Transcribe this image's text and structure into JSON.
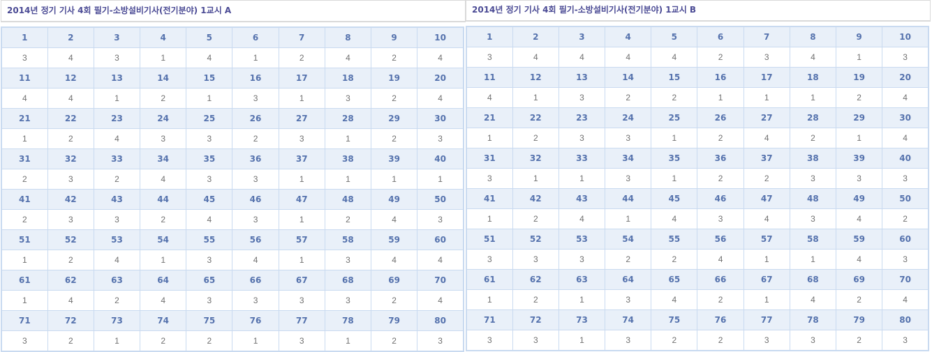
{
  "panels": [
    {
      "id": "a",
      "title": "2014년 정기 기사 4회 필기-소방설비기사(전기분야) 1교시 A",
      "answers": [
        [
          3,
          4,
          3,
          1,
          4,
          1,
          2,
          4,
          2,
          4
        ],
        [
          4,
          4,
          1,
          2,
          1,
          3,
          1,
          3,
          2,
          4
        ],
        [
          1,
          2,
          4,
          3,
          3,
          2,
          3,
          1,
          2,
          3
        ],
        [
          2,
          3,
          2,
          4,
          3,
          3,
          1,
          1,
          1,
          1
        ],
        [
          2,
          3,
          3,
          2,
          4,
          3,
          1,
          2,
          4,
          3
        ],
        [
          1,
          2,
          4,
          1,
          3,
          4,
          1,
          3,
          4,
          4
        ],
        [
          1,
          4,
          2,
          4,
          3,
          3,
          3,
          3,
          2,
          4
        ],
        [
          3,
          2,
          1,
          2,
          2,
          1,
          3,
          1,
          2,
          3
        ]
      ]
    },
    {
      "id": "b",
      "title": "2014년 정기 기사 4회 필기-소방설비기사(전기분야) 1교시 B",
      "answers": [
        [
          3,
          4,
          4,
          4,
          4,
          2,
          3,
          4,
          1,
          3
        ],
        [
          4,
          1,
          3,
          2,
          2,
          1,
          1,
          1,
          2,
          4
        ],
        [
          1,
          2,
          3,
          3,
          1,
          2,
          4,
          2,
          1,
          4
        ],
        [
          3,
          1,
          1,
          3,
          1,
          2,
          2,
          3,
          3,
          3
        ],
        [
          1,
          2,
          4,
          1,
          4,
          3,
          4,
          3,
          4,
          2
        ],
        [
          3,
          3,
          3,
          2,
          2,
          4,
          1,
          1,
          4,
          3
        ],
        [
          1,
          2,
          1,
          3,
          4,
          2,
          1,
          4,
          2,
          4
        ],
        [
          3,
          3,
          1,
          3,
          2,
          2,
          3,
          3,
          2,
          3
        ]
      ]
    }
  ],
  "question_numbers": [
    [
      1,
      2,
      3,
      4,
      5,
      6,
      7,
      8,
      9,
      10
    ],
    [
      11,
      12,
      13,
      14,
      15,
      16,
      17,
      18,
      19,
      20
    ],
    [
      21,
      22,
      23,
      24,
      25,
      26,
      27,
      28,
      29,
      30
    ],
    [
      31,
      32,
      33,
      34,
      35,
      36,
      37,
      38,
      39,
      40
    ],
    [
      41,
      42,
      43,
      44,
      45,
      46,
      47,
      48,
      49,
      50
    ],
    [
      51,
      52,
      53,
      54,
      55,
      56,
      57,
      58,
      59,
      60
    ],
    [
      61,
      62,
      63,
      64,
      65,
      66,
      67,
      68,
      69,
      70
    ],
    [
      71,
      72,
      73,
      74,
      75,
      76,
      77,
      78,
      79,
      80
    ]
  ],
  "colors": {
    "header_bg": "#e9f0f9",
    "header_text": "#5572ad",
    "border": "#c9daf0",
    "title_text": "#4a4a94",
    "answer_text": "#707070"
  }
}
